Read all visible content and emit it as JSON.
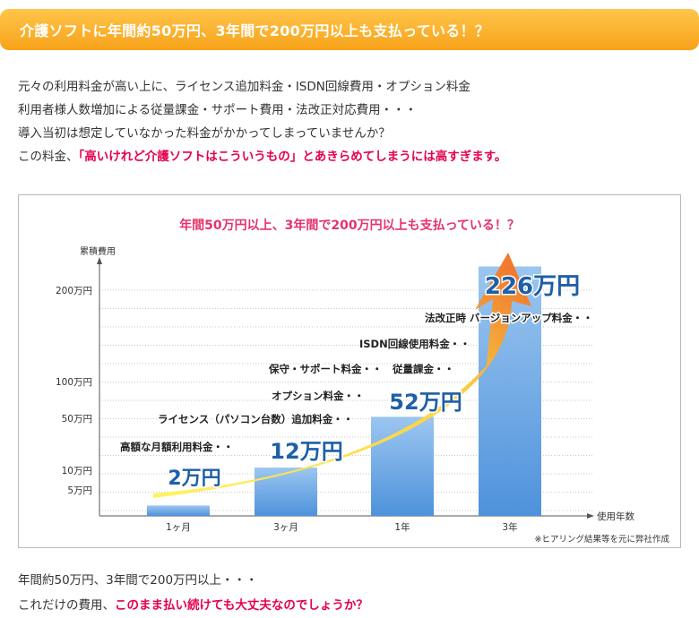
{
  "banner": {
    "title": "介護ソフトに年間約50万円、3年間で200万円以上も支払っている！？"
  },
  "intro": {
    "line1": "元々の利用料金が高い上に、ライセンス追加料金・ISDN回線費用・オプション料金",
    "line2": "利用者様人数増加による従量課金・サポート費用・法改正対応費用・・・",
    "line3": "導入当初は想定していなかった料金がかかってしまっていませんか？",
    "line4_prefix": "この料金、",
    "line4_highlight": "「高いけれど介護ソフトはこういうもの」とあきらめてしまうには高すぎます。"
  },
  "chart_data": {
    "type": "bar",
    "title": "年間50万円以上、3年間で200万円以上も支払っている！？",
    "ylabel": "累積費用",
    "xlabel": "使用年数",
    "categories": [
      "1ヶ月",
      "3ヶ月",
      "1年",
      "3年"
    ],
    "values": [
      2,
      12,
      52,
      226
    ],
    "value_labels": [
      "2万円",
      "12万円",
      "52万円",
      "226万円"
    ],
    "y_tick_values": [
      5,
      10,
      50,
      100,
      200
    ],
    "y_tick_labels": [
      "5万円",
      "10万円",
      "50万円",
      "100万円",
      "200万円"
    ],
    "annotations": [
      "高額な月額利用料金・・",
      "ライセンス（パソコン台数）追加料金・・",
      "オプション料金・・",
      "保守・サポート料金・・　従量課金・・",
      "ISDN回線使用料金・・",
      "法改正時 バージョンアップ料金・・"
    ],
    "note": "※ヒアリング結果等を元に弊社作成",
    "grid": true,
    "colors": {
      "title": "#e5336a",
      "value_label": "#1f5fa6",
      "bar_top": "#9cc6f0",
      "bar_bottom": "#4e92db",
      "arrow_start": "#fff25a",
      "arrow_end": "#f26522",
      "grid": "#c8c8c8"
    }
  },
  "footer": {
    "line1": "年間約50万円、3年間で200万円以上・・・",
    "line2_prefix": "これだけの費用、",
    "line2_highlight": "このまま払い続けても大丈夫なのでしょうか？"
  }
}
